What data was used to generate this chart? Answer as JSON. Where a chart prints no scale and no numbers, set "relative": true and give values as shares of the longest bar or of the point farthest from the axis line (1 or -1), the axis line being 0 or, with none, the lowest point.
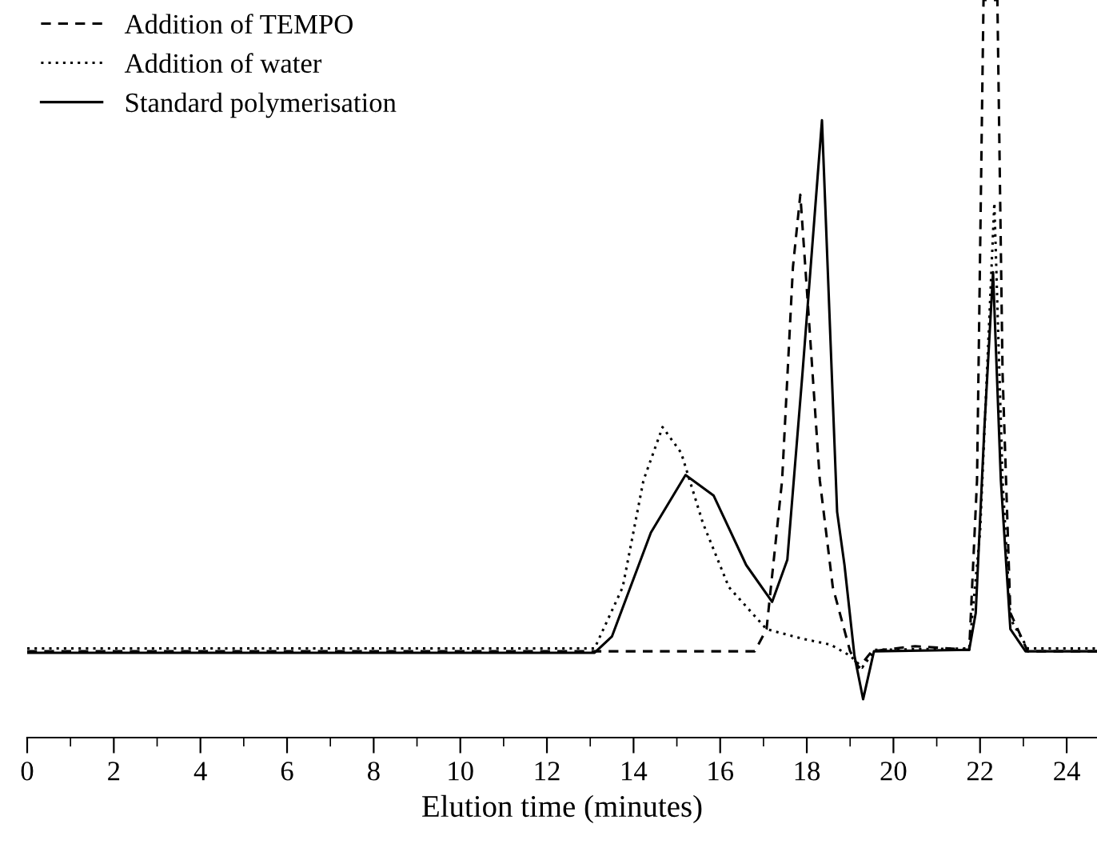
{
  "chart_data": {
    "type": "line",
    "relative": true,
    "xlabel": "Elution time (minutes)",
    "xlim": [
      0,
      24.7
    ],
    "xticks": [
      0,
      {
        "value": 1,
        "label": null
      },
      2,
      {
        "value": 3,
        "label": null
      },
      4,
      {
        "value": 5,
        "label": null
      },
      6,
      {
        "value": 7,
        "label": null
      },
      8,
      {
        "value": 9,
        "label": null
      },
      10,
      {
        "value": 11,
        "label": null
      },
      12,
      {
        "value": 13,
        "label": null
      },
      14,
      {
        "value": 15,
        "label": null
      },
      16,
      {
        "value": 17,
        "label": null
      },
      18,
      {
        "value": 19,
        "label": null
      },
      20,
      {
        "value": 21,
        "label": null
      },
      22,
      {
        "value": 23,
        "label": null
      },
      24
    ],
    "tick_labels": "x",
    "legend": "top left",
    "grid": false,
    "marker": "none",
    "series": [
      {
        "name": "Addition of TEMPO",
        "color": "#000000",
        "line_style": "dashed",
        "x": [
          0,
          16.8,
          17.07,
          17.43,
          17.68,
          17.85,
          18.05,
          18.3,
          18.6,
          19.0,
          19.2,
          19.5,
          20.5,
          21.75,
          21.93,
          22.08,
          22.2,
          22.4,
          22.52,
          22.7,
          23.1,
          24.7
        ],
        "values": [
          0.117,
          0.117,
          0.147,
          0.349,
          0.638,
          0.736,
          0.566,
          0.349,
          0.204,
          0.117,
          0.095,
          0.117,
          0.124,
          0.119,
          0.349,
          1.0,
          1.0,
          1.0,
          0.494,
          0.169,
          0.117,
          0.117
        ]
      },
      {
        "name": "Addition of water",
        "color": "#000000",
        "line_style": "dotted",
        "x": [
          0,
          13.1,
          13.75,
          14.23,
          14.67,
          15.1,
          15.6,
          16.2,
          17.07,
          17.9,
          18.55,
          19.0,
          19.28,
          19.57,
          21.75,
          22.0,
          22.33,
          22.52,
          22.7,
          23.1,
          24.7
        ],
        "values": [
          0.121,
          0.121,
          0.204,
          0.349,
          0.421,
          0.386,
          0.291,
          0.204,
          0.147,
          0.134,
          0.126,
          0.111,
          0.095,
          0.119,
          0.121,
          0.278,
          0.725,
          0.349,
          0.161,
          0.121,
          0.121
        ]
      },
      {
        "name": "Standard polymerisation",
        "color": "#000000",
        "line_style": "solid",
        "x": [
          0,
          13.1,
          13.5,
          14.4,
          15.2,
          15.85,
          16.6,
          17.2,
          17.55,
          17.9,
          18.35,
          18.7,
          18.87,
          19.1,
          19.3,
          19.55,
          21.75,
          21.9,
          22.1,
          22.3,
          22.48,
          22.7,
          23.05,
          24.7
        ],
        "values": [
          0.115,
          0.115,
          0.137,
          0.278,
          0.356,
          0.328,
          0.234,
          0.184,
          0.241,
          0.494,
          0.837,
          0.306,
          0.234,
          0.111,
          0.052,
          0.117,
          0.119,
          0.169,
          0.42,
          0.631,
          0.349,
          0.147,
          0.117,
          0.117
        ]
      }
    ]
  }
}
